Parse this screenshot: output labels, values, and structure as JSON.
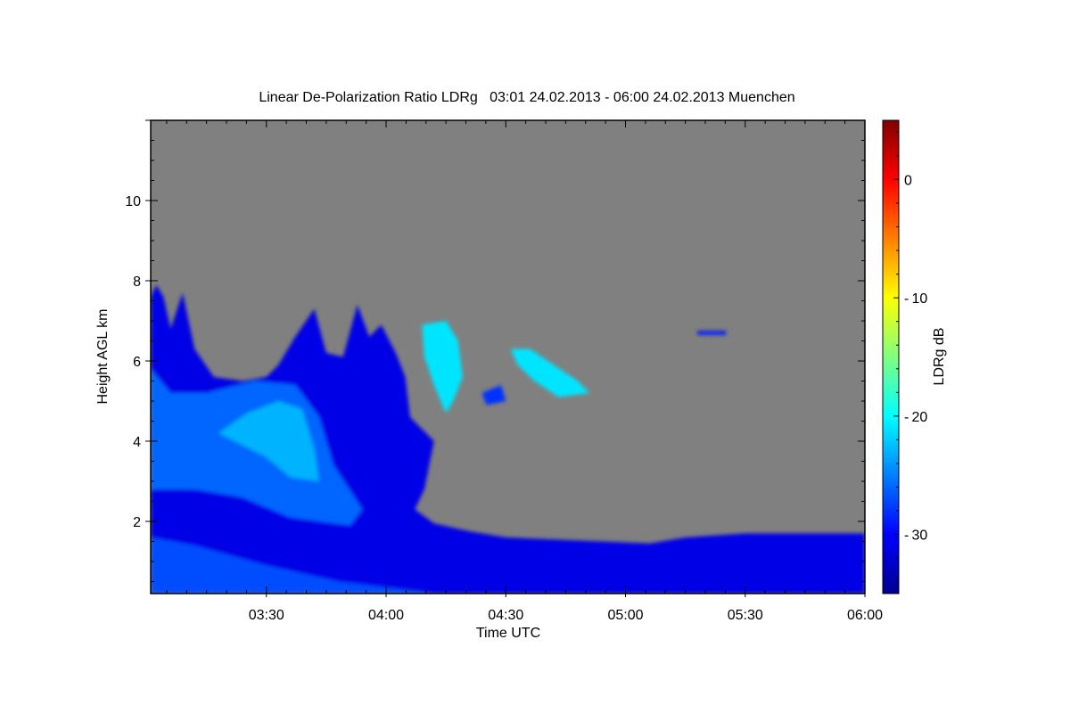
{
  "chart_data": {
    "type": "heatmap",
    "title": "Linear De-Polarization Ratio LDRg   03:01 24.02.2013 - 06:00 24.02.2013 Muenchen",
    "xlabel": "Time UTC",
    "ylabel": "Height AGL km",
    "colorbar_label": "LDRg dB",
    "xlim_hours": [
      3.0167,
      6.0
    ],
    "ylim_km": [
      0.2,
      12.0
    ],
    "clim_db": [
      -35,
      5
    ],
    "colormap": "jet",
    "missing_color": "#808080",
    "x_ticks": [
      {
        "value": 3.5,
        "label": "03:30"
      },
      {
        "value": 4.0,
        "label": "04:00"
      },
      {
        "value": 4.5,
        "label": "04:30"
      },
      {
        "value": 5.0,
        "label": "05:00"
      },
      {
        "value": 5.5,
        "label": "05:30"
      },
      {
        "value": 6.0,
        "label": "06:00"
      }
    ],
    "y_ticks": [
      {
        "value": 2,
        "label": "2"
      },
      {
        "value": 4,
        "label": "4"
      },
      {
        "value": 6,
        "label": "6"
      },
      {
        "value": 8,
        "label": "8"
      },
      {
        "value": 10,
        "label": "10"
      }
    ],
    "colorbar_ticks": [
      {
        "value": 0,
        "label": "0"
      },
      {
        "value": -10,
        "label": "-10"
      },
      {
        "value": -20,
        "label": "-20"
      },
      {
        "value": -30,
        "label": "-30"
      }
    ],
    "regions": [
      {
        "name": "aerosol-cloud-main",
        "ldr_db": -31,
        "points": [
          [
            3.017,
            0.2
          ],
          [
            3.017,
            7.6
          ],
          [
            3.04,
            7.9
          ],
          [
            3.07,
            7.6
          ],
          [
            3.1,
            6.8
          ],
          [
            3.15,
            7.7
          ],
          [
            3.2,
            6.3
          ],
          [
            3.28,
            5.6
          ],
          [
            3.4,
            5.5
          ],
          [
            3.5,
            5.6
          ],
          [
            3.55,
            5.9
          ],
          [
            3.62,
            6.6
          ],
          [
            3.7,
            7.3
          ],
          [
            3.75,
            6.2
          ],
          [
            3.82,
            6.1
          ],
          [
            3.88,
            7.4
          ],
          [
            3.93,
            6.6
          ],
          [
            3.98,
            6.9
          ],
          [
            4.04,
            6.2
          ],
          [
            4.08,
            5.6
          ],
          [
            4.1,
            4.6
          ],
          [
            4.15,
            4.3
          ],
          [
            4.2,
            4.0
          ],
          [
            4.18,
            3.4
          ],
          [
            4.16,
            2.8
          ],
          [
            4.12,
            2.3
          ],
          [
            4.2,
            1.95
          ],
          [
            4.35,
            1.75
          ],
          [
            4.5,
            1.6
          ],
          [
            4.7,
            1.55
          ],
          [
            4.9,
            1.5
          ],
          [
            5.1,
            1.45
          ],
          [
            5.25,
            1.6
          ],
          [
            5.5,
            1.7
          ],
          [
            5.8,
            1.7
          ],
          [
            6.0,
            1.7
          ],
          [
            6.0,
            0.2
          ]
        ]
      },
      {
        "name": "fall-streak-light",
        "ldr_db": -26,
        "points": [
          [
            3.017,
            2.8
          ],
          [
            3.017,
            5.8
          ],
          [
            3.1,
            5.2
          ],
          [
            3.25,
            5.2
          ],
          [
            3.45,
            5.5
          ],
          [
            3.62,
            5.4
          ],
          [
            3.72,
            4.6
          ],
          [
            3.78,
            3.4
          ],
          [
            3.9,
            2.3
          ],
          [
            3.85,
            1.9
          ],
          [
            3.6,
            2.1
          ],
          [
            3.4,
            2.6
          ],
          [
            3.2,
            2.8
          ]
        ]
      },
      {
        "name": "fall-streak-bright",
        "ldr_db": -23,
        "points": [
          [
            3.3,
            4.2
          ],
          [
            3.42,
            4.7
          ],
          [
            3.55,
            5.0
          ],
          [
            3.65,
            4.8
          ],
          [
            3.7,
            3.8
          ],
          [
            3.72,
            3.0
          ],
          [
            3.6,
            3.1
          ],
          [
            3.5,
            3.6
          ],
          [
            3.4,
            3.9
          ]
        ]
      },
      {
        "name": "near-ground-light",
        "ldr_db": -27,
        "points": [
          [
            3.017,
            0.2
          ],
          [
            3.017,
            1.6
          ],
          [
            3.2,
            1.4
          ],
          [
            3.5,
            0.9
          ],
          [
            3.8,
            0.5
          ],
          [
            4.2,
            0.2
          ]
        ]
      },
      {
        "name": "cirrus-patch-1",
        "ldr_db": -21,
        "points": [
          [
            4.15,
            6.9
          ],
          [
            4.25,
            7.0
          ],
          [
            4.3,
            6.5
          ],
          [
            4.32,
            5.6
          ],
          [
            4.28,
            5.0
          ],
          [
            4.25,
            4.7
          ],
          [
            4.2,
            5.4
          ],
          [
            4.16,
            6.1
          ]
        ]
      },
      {
        "name": "cirrus-patch-2",
        "ldr_db": -21,
        "points": [
          [
            4.52,
            6.3
          ],
          [
            4.6,
            6.3
          ],
          [
            4.7,
            5.9
          ],
          [
            4.8,
            5.5
          ],
          [
            4.85,
            5.2
          ],
          [
            4.72,
            5.1
          ],
          [
            4.62,
            5.5
          ],
          [
            4.55,
            5.9
          ]
        ]
      },
      {
        "name": "cirrus-patch-3",
        "ldr_db": -28,
        "points": [
          [
            4.4,
            5.2
          ],
          [
            4.48,
            5.4
          ],
          [
            4.5,
            5.0
          ],
          [
            4.42,
            4.9
          ]
        ]
      },
      {
        "name": "cirrus-patch-4",
        "ldr_db": -29,
        "points": [
          [
            5.3,
            6.75
          ],
          [
            5.42,
            6.75
          ],
          [
            5.42,
            6.65
          ],
          [
            5.3,
            6.65
          ]
        ]
      }
    ]
  }
}
